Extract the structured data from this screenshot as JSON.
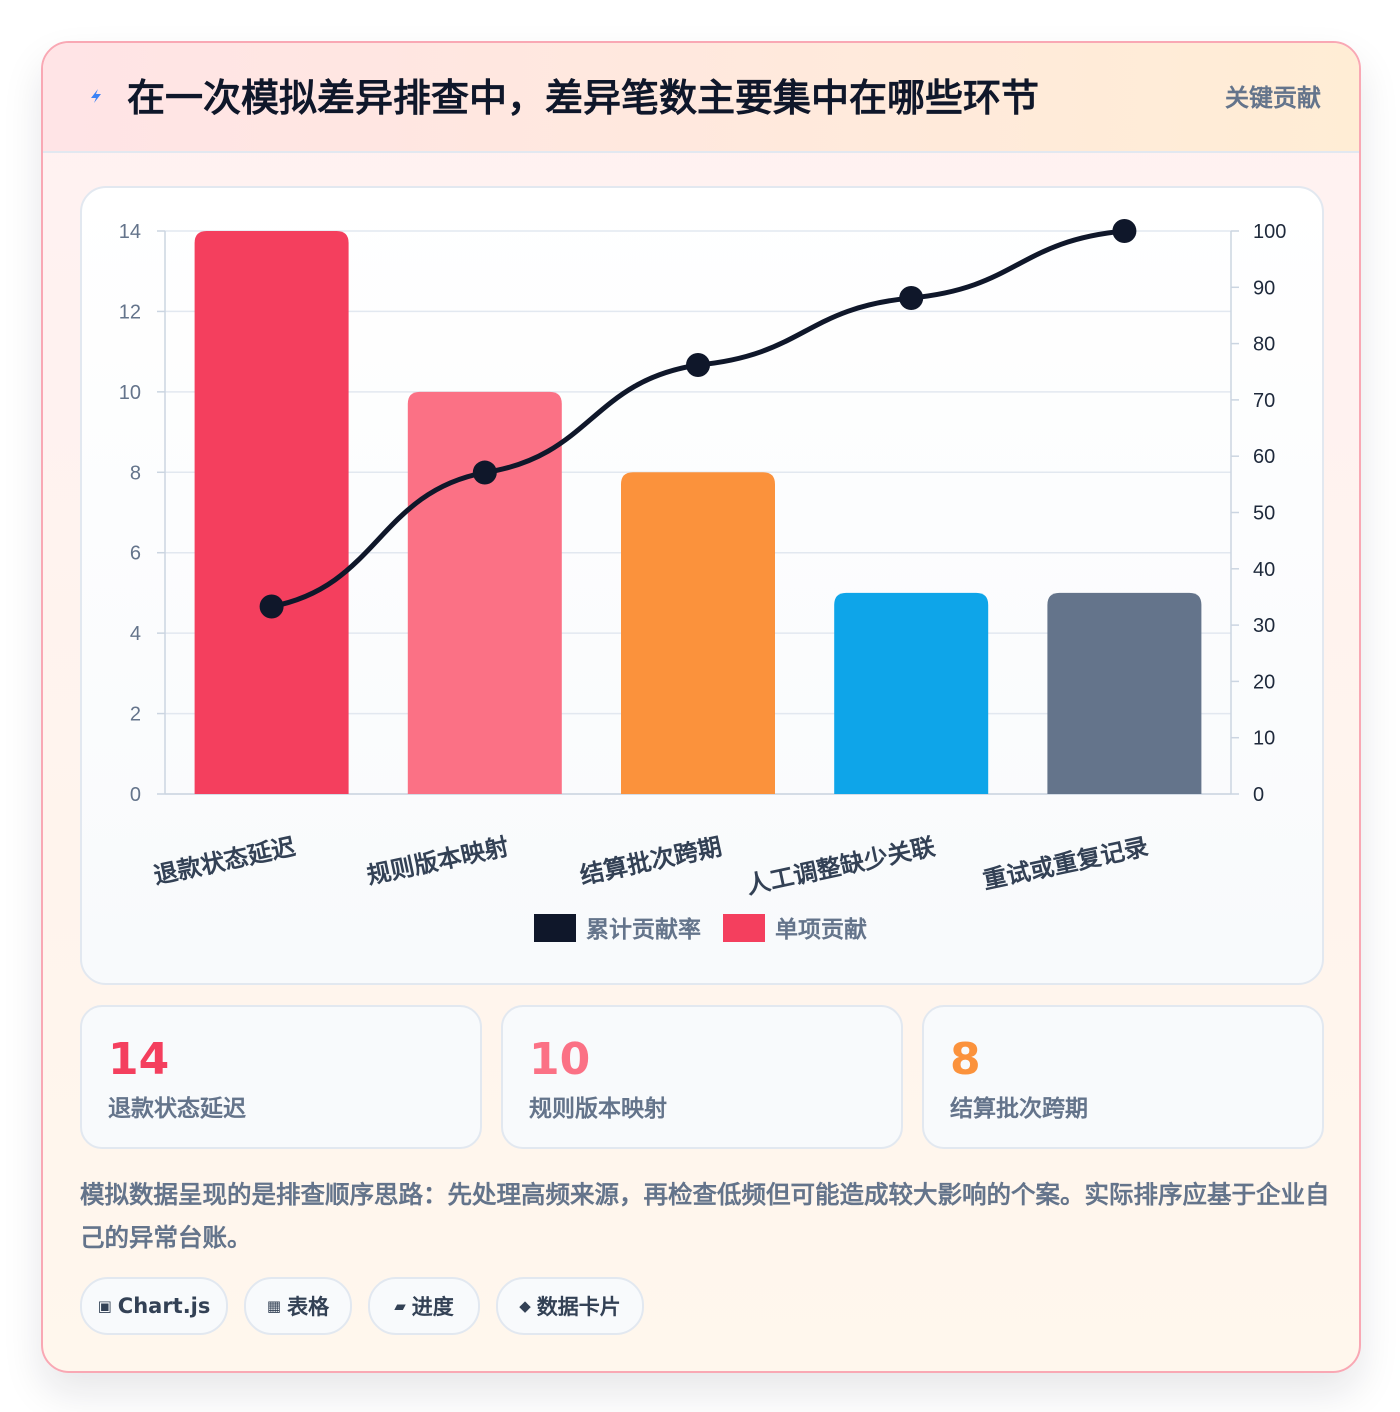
{
  "header": {
    "title": "在一次模拟差异排查中，差异笔数主要集中在哪些环节",
    "tag": "关键贡献",
    "icon": "lightning-icon"
  },
  "colors": {
    "accent_red": "#f43f5e",
    "pink": "#fb7185",
    "orange": "#fb923c",
    "sky": "#0ea5e9",
    "slate": "#64748b",
    "line": "#0f172a"
  },
  "chart_data": {
    "type": "bar",
    "categories": [
      "退款状态延迟",
      "规则版本映射",
      "结算批次跨期",
      "人工调整缺少关联",
      "重试或重复记录"
    ],
    "series": [
      {
        "name": "单项贡献",
        "type": "bar",
        "axis": "left",
        "values": [
          14,
          10,
          8,
          5,
          5
        ],
        "colors": [
          "#f43f5e",
          "#fb7185",
          "#fb923c",
          "#0ea5e9",
          "#64748b"
        ]
      },
      {
        "name": "累计贡献率",
        "type": "line",
        "axis": "right",
        "values": [
          33.3,
          57.1,
          76.2,
          88.1,
          100
        ],
        "color": "#0f172a"
      }
    ],
    "y_left": {
      "min": 0,
      "max": 14,
      "ticks": [
        0,
        2,
        4,
        6,
        8,
        10,
        12,
        14
      ]
    },
    "y_right": {
      "min": 0,
      "max": 100,
      "ticks": [
        0,
        10,
        20,
        30,
        40,
        50,
        60,
        70,
        80,
        90,
        100
      ]
    },
    "legend": {
      "position": "bottom",
      "items": [
        {
          "label": "累计贡献率",
          "color": "#0f172a"
        },
        {
          "label": "单项贡献",
          "color": "#f43f5e"
        }
      ]
    },
    "grid": true
  },
  "stats": [
    {
      "value": "14",
      "label": "退款状态延迟",
      "color": "#f43f5e"
    },
    {
      "value": "10",
      "label": "规则版本映射",
      "color": "#fb7185"
    },
    {
      "value": "8",
      "label": "结算批次跨期",
      "color": "#fb923c"
    }
  ],
  "note": "模拟数据呈现的是排查顺序思路：先处理高频来源，再检查低频但可能造成较大影响的个案。实际排序应基于企业自己的异常台账。",
  "chips": [
    {
      "icon": "▣",
      "icon_name": "chart-icon",
      "label": "Chart.js"
    },
    {
      "icon": "▦",
      "icon_name": "table-icon",
      "label": "表格"
    },
    {
      "icon": "▰",
      "icon_name": "progress-icon",
      "label": "进度"
    },
    {
      "icon": "◆",
      "icon_name": "data-card-icon",
      "label": "数据卡片"
    }
  ]
}
